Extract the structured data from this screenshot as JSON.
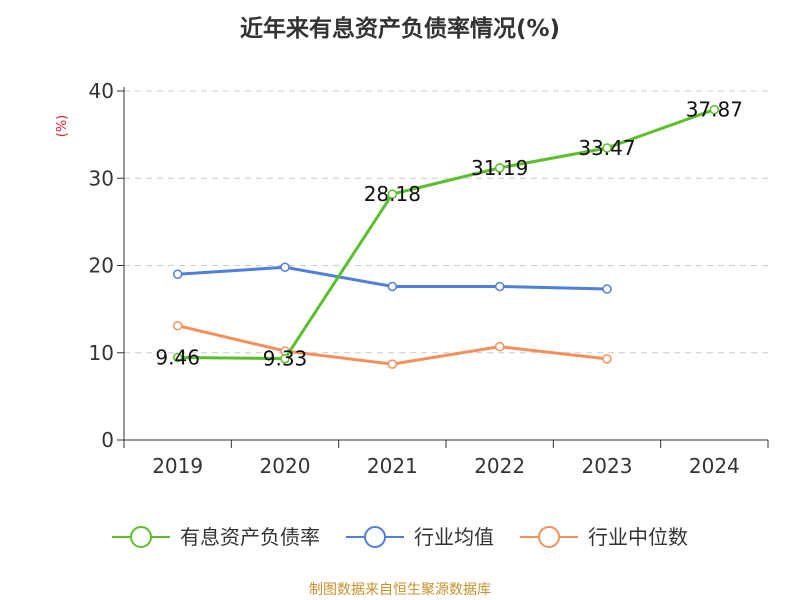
{
  "chart_data": {
    "type": "line",
    "title": "近年来有息资产负债率情况(%)",
    "ylabel": "(%)",
    "categories": [
      "2019",
      "2020",
      "2021",
      "2022",
      "2023",
      "2024"
    ],
    "ylim": [
      0,
      40
    ],
    "yticks": [
      0,
      10,
      20,
      30,
      40
    ],
    "grid": true,
    "legend_position": "bottom",
    "series": [
      {
        "name": "有息资产负债率",
        "color": "#5BBF2C",
        "values": [
          9.46,
          9.33,
          28.18,
          31.19,
          33.47,
          37.87
        ],
        "labels": true
      },
      {
        "name": "行业均值",
        "color": "#4F7FDB",
        "values": [
          19.0,
          19.8,
          17.6,
          17.6,
          17.3,
          null
        ],
        "labels": false
      },
      {
        "name": "行业中位数",
        "color": "#F5905C",
        "values": [
          13.1,
          10.2,
          8.7,
          10.7,
          9.3,
          null
        ],
        "labels": false
      }
    ]
  },
  "ylabel_color": "#E02020",
  "source": {
    "text": "制图数据来自恒生聚源数据库",
    "color": "#C8922D"
  }
}
